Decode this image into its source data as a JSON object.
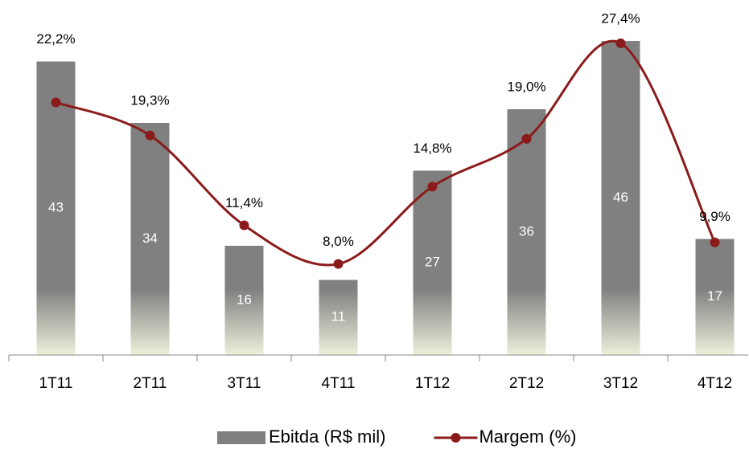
{
  "chart_data": {
    "type": "bar",
    "categories": [
      "1T11",
      "2T11",
      "3T11",
      "4T11",
      "1T12",
      "2T12",
      "3T12",
      "4T12"
    ],
    "series": [
      {
        "name": "Ebitda (R$ mil)",
        "type": "bar",
        "color": "#808080",
        "values": [
          43,
          34,
          16,
          11,
          27,
          36,
          46,
          17
        ]
      },
      {
        "name": "Margem (%)",
        "type": "line",
        "axis": "y2",
        "color": "#8b1a1a",
        "values": [
          22.2,
          19.3,
          11.4,
          8.0,
          14.8,
          19.0,
          27.4,
          9.9
        ],
        "value_labels": [
          "22,2%",
          "19,3%",
          "11,4%",
          "8,0%",
          "14,8%",
          "19,0%",
          "27,4%",
          "9,9%"
        ]
      }
    ],
    "ylim": [
      0,
      50
    ],
    "y2lim": [
      0,
      30
    ],
    "legend": "bottom"
  }
}
